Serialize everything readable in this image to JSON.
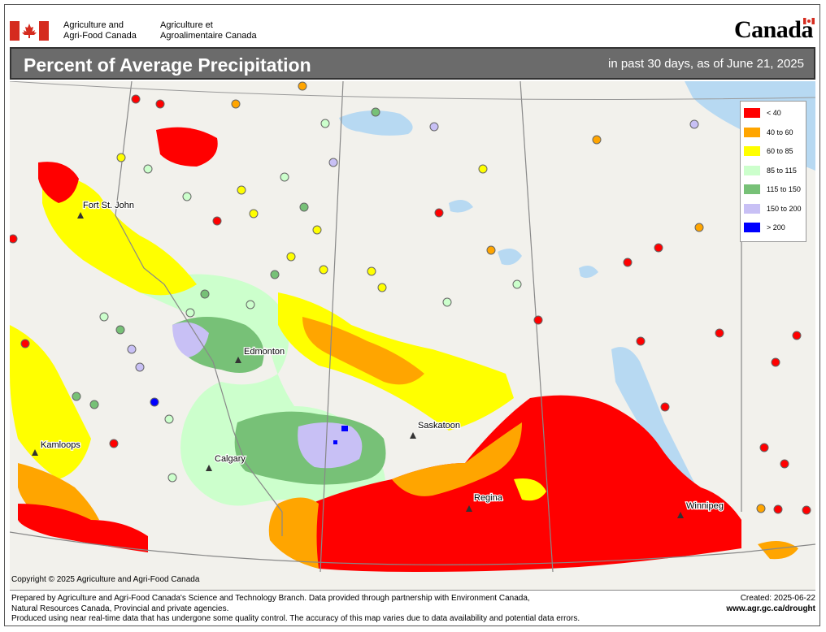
{
  "agency": {
    "en_line1": "Agriculture and",
    "en_line2": "Agri-Food Canada",
    "fr_line1": "Agriculture et",
    "fr_line2": "Agroalimentaire Canada"
  },
  "wordmark": "Canada",
  "title": "Percent of Average Precipitation",
  "subtitle": "in past 30 days, as of June 21, 2025",
  "legend": [
    {
      "label": "< 40",
      "color": "#ff0000"
    },
    {
      "label": "40 to 60",
      "color": "#ffa500"
    },
    {
      "label": "60 to 85",
      "color": "#ffff00"
    },
    {
      "label": "85 to 115",
      "color": "#ccffcc"
    },
    {
      "label": "115 to 150",
      "color": "#77c177"
    },
    {
      "label": "150 to 200",
      "color": "#c8c0f5"
    },
    {
      "label": "> 200",
      "color": "#0000ff"
    }
  ],
  "cities": [
    "Fort St. John",
    "Edmonton",
    "Kamloops",
    "Calgary",
    "Saskatoon",
    "Regina",
    "Winnipeg"
  ],
  "copyright": "Copyright © 2025 Agriculture and Agri-Food Canada",
  "footer": {
    "line1": "Prepared by Agriculture and Agri-Food Canada's Science and Technology Branch. Data provided through partnership with Environment Canada,",
    "line2": "Natural Resources Canada, Provincial and private agencies.",
    "line3": "Produced using near real-time data that has undergone some quality control. The accuracy of this map varies due to data availability and potential data errors.",
    "created": "Created: 2025-06-22",
    "url": "www.agr.gc.ca/drought"
  }
}
